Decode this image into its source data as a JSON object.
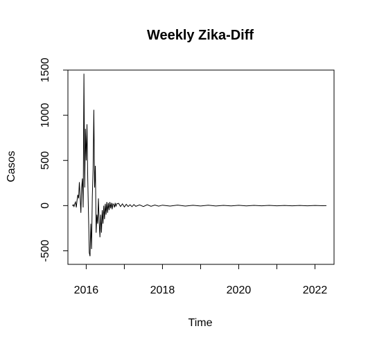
{
  "chart_data": {
    "type": "line",
    "title": "Weekly Zika-Diff",
    "xlabel": "Time",
    "ylabel": "Casos",
    "xlim": [
      2015.52,
      2022.5
    ],
    "ylim": [
      -650,
      1500
    ],
    "x_ticks": [
      2016,
      2017,
      2018,
      2019,
      2020,
      2021,
      2022
    ],
    "x_tick_labels": [
      "2016",
      "",
      "2018",
      "",
      "2020",
      "",
      "2022"
    ],
    "y_ticks": [
      -500,
      0,
      500,
      1000,
      1500
    ],
    "y_tick_labels": [
      "-500",
      "0",
      "500",
      "1000",
      "1500"
    ],
    "grid": false,
    "legend": "none",
    "line_color": "#000000",
    "series": [
      {
        "x": [
          2015.64,
          2015.66,
          2015.68,
          2015.7,
          2015.72,
          2015.74,
          2015.76,
          2015.78,
          2015.8,
          2015.82,
          2015.84,
          2015.86,
          2015.88,
          2015.9,
          2015.92,
          2015.94,
          2015.96,
          2015.98,
          2016.0,
          2016.02,
          2016.04,
          2016.06,
          2016.08,
          2016.1,
          2016.12,
          2016.14,
          2016.16,
          2016.18,
          2016.2,
          2016.22,
          2016.24,
          2016.26,
          2016.28,
          2016.3,
          2016.32,
          2016.34,
          2016.36,
          2016.38,
          2016.4,
          2016.42,
          2016.44,
          2016.46,
          2016.48,
          2016.5,
          2016.52,
          2016.54,
          2016.56,
          2016.58,
          2016.6,
          2016.62,
          2016.64,
          2016.66,
          2016.68,
          2016.7,
          2016.72,
          2016.74,
          2016.76,
          2016.78,
          2016.8,
          2016.85,
          2016.9,
          2016.95,
          2017.0,
          2017.05,
          2017.1,
          2017.15,
          2017.2,
          2017.25,
          2017.3,
          2017.4,
          2017.5,
          2017.6,
          2017.7,
          2017.8,
          2017.9,
          2018.0,
          2018.2,
          2018.4,
          2018.6,
          2018.8,
          2019.0,
          2019.2,
          2019.4,
          2019.6,
          2019.8,
          2020.0,
          2020.2,
          2020.4,
          2020.6,
          2020.8,
          2021.0,
          2021.2,
          2021.4,
          2021.6,
          2021.8,
          2022.0,
          2022.2,
          2022.3
        ],
        "y": [
          -5,
          10,
          -10,
          20,
          40,
          -20,
          60,
          120,
          80,
          260,
          100,
          -80,
          200,
          300,
          -20,
          1460,
          200,
          850,
          500,
          900,
          300,
          -100,
          -520,
          -560,
          -200,
          -480,
          100,
          400,
          1060,
          200,
          440,
          -300,
          -100,
          -200,
          80,
          -180,
          -350,
          -100,
          -300,
          -50,
          -200,
          0,
          -150,
          20,
          -100,
          40,
          -80,
          30,
          -50,
          40,
          -30,
          30,
          -40,
          20,
          10,
          -20,
          30,
          -10,
          20,
          25,
          -10,
          20,
          -15,
          15,
          -10,
          10,
          -12,
          12,
          -8,
          8,
          -10,
          10,
          -8,
          6,
          -6,
          5,
          -5,
          6,
          -5,
          4,
          -4,
          5,
          -4,
          3,
          -3,
          4,
          -3,
          3,
          -2,
          3,
          -2,
          2,
          -2,
          2,
          -2,
          2,
          -1,
          0
        ]
      }
    ]
  }
}
